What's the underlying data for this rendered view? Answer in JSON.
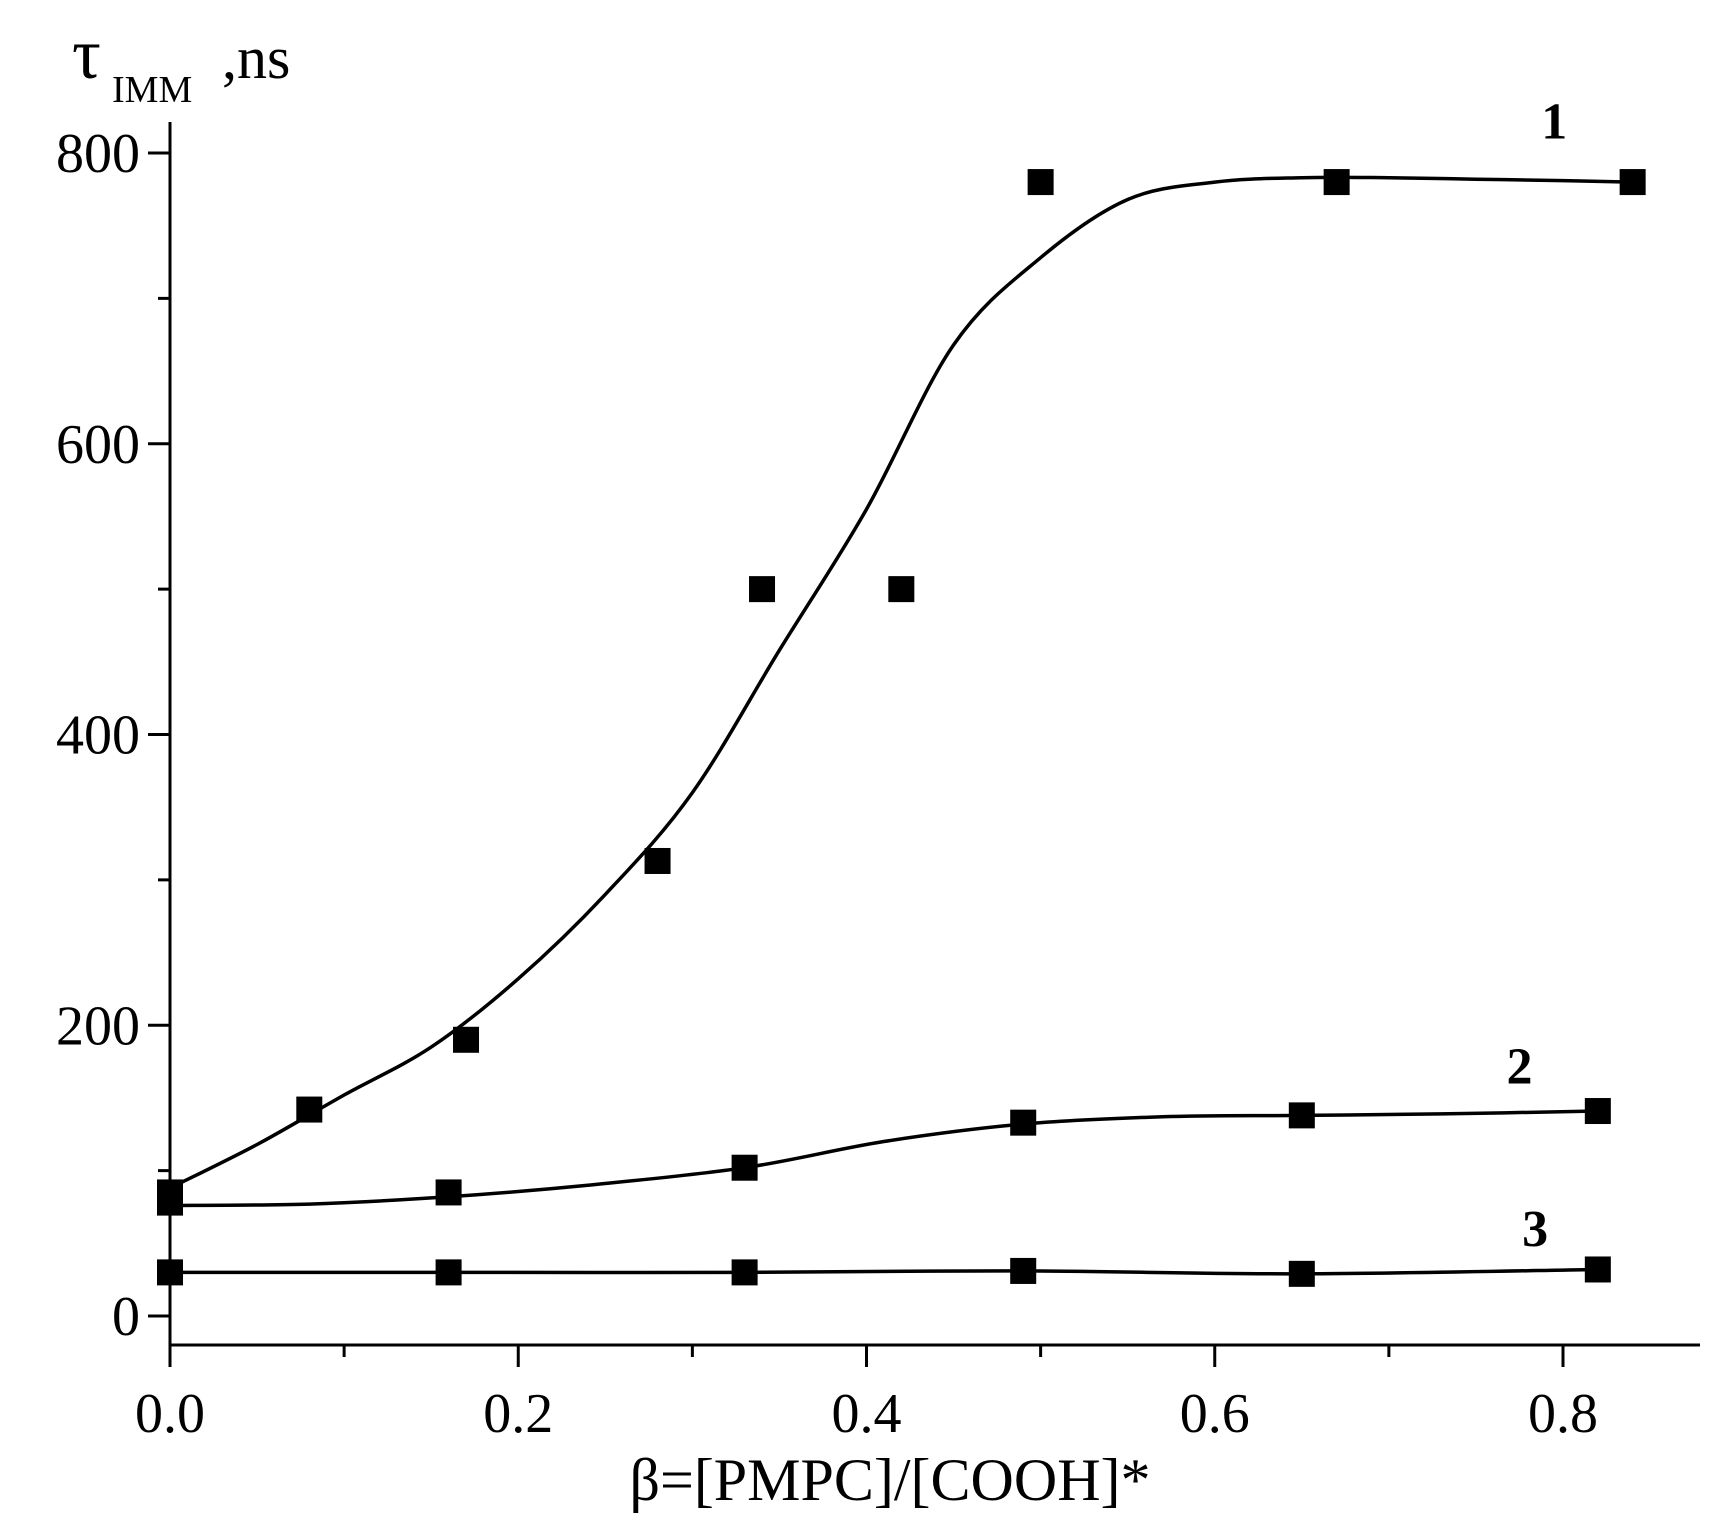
{
  "chart_data": {
    "type": "scatter",
    "title": "",
    "xlabel": "β=[PMPC]/[COOH]*",
    "ylabel": {
      "main": "τ",
      "sub": "IMM",
      "suffix": ",ns"
    },
    "xlim": [
      0.0,
      0.88
    ],
    "ylim": [
      -20,
      820
    ],
    "x_ticks": [
      0.0,
      0.2,
      0.4,
      0.6,
      0.8
    ],
    "x_tick_labels": [
      "0.0",
      "0.2",
      "0.4",
      "0.6",
      "0.8"
    ],
    "x_minor_ticks": [
      0.1,
      0.3,
      0.5,
      0.7
    ],
    "y_ticks": [
      0,
      200,
      400,
      600,
      800
    ],
    "y_tick_labels": [
      "0",
      "200",
      "400",
      "600",
      "800"
    ],
    "y_minor_ticks": [
      100,
      300,
      500,
      700
    ],
    "grid": false,
    "series": [
      {
        "name": "1",
        "marker": "square",
        "fit_curve": true,
        "points": [
          [
            0.0,
            85
          ],
          [
            0.08,
            142
          ],
          [
            0.17,
            190
          ],
          [
            0.28,
            313
          ],
          [
            0.34,
            500
          ],
          [
            0.42,
            500
          ],
          [
            0.5,
            780
          ],
          [
            0.67,
            780
          ],
          [
            0.84,
            780
          ]
        ],
        "curve": [
          [
            0.0,
            88
          ],
          [
            0.05,
            118
          ],
          [
            0.1,
            152
          ],
          [
            0.15,
            185
          ],
          [
            0.2,
            232
          ],
          [
            0.25,
            290
          ],
          [
            0.3,
            360
          ],
          [
            0.35,
            458
          ],
          [
            0.4,
            555
          ],
          [
            0.45,
            668
          ],
          [
            0.5,
            728
          ],
          [
            0.55,
            768
          ],
          [
            0.6,
            780
          ],
          [
            0.65,
            783
          ],
          [
            0.7,
            783
          ],
          [
            0.75,
            782
          ],
          [
            0.8,
            781
          ],
          [
            0.84,
            780
          ]
        ]
      },
      {
        "name": "2",
        "marker": "square",
        "fit_curve": true,
        "points": [
          [
            0.0,
            78
          ],
          [
            0.16,
            85
          ],
          [
            0.33,
            102
          ],
          [
            0.49,
            133
          ],
          [
            0.65,
            138
          ],
          [
            0.82,
            141
          ]
        ],
        "curve": [
          [
            0.0,
            76
          ],
          [
            0.08,
            77
          ],
          [
            0.16,
            82
          ],
          [
            0.24,
            90
          ],
          [
            0.33,
            102
          ],
          [
            0.41,
            120
          ],
          [
            0.49,
            132
          ],
          [
            0.57,
            137
          ],
          [
            0.65,
            138
          ],
          [
            0.73,
            139
          ],
          [
            0.82,
            141
          ]
        ]
      },
      {
        "name": "3",
        "marker": "square",
        "fit_curve": true,
        "points": [
          [
            0.0,
            30
          ],
          [
            0.16,
            30
          ],
          [
            0.33,
            30
          ],
          [
            0.49,
            31
          ],
          [
            0.65,
            29
          ],
          [
            0.82,
            32
          ]
        ],
        "curve": [
          [
            0.0,
            30
          ],
          [
            0.16,
            30
          ],
          [
            0.33,
            30
          ],
          [
            0.49,
            31
          ],
          [
            0.65,
            29
          ],
          [
            0.82,
            32
          ]
        ]
      }
    ]
  }
}
